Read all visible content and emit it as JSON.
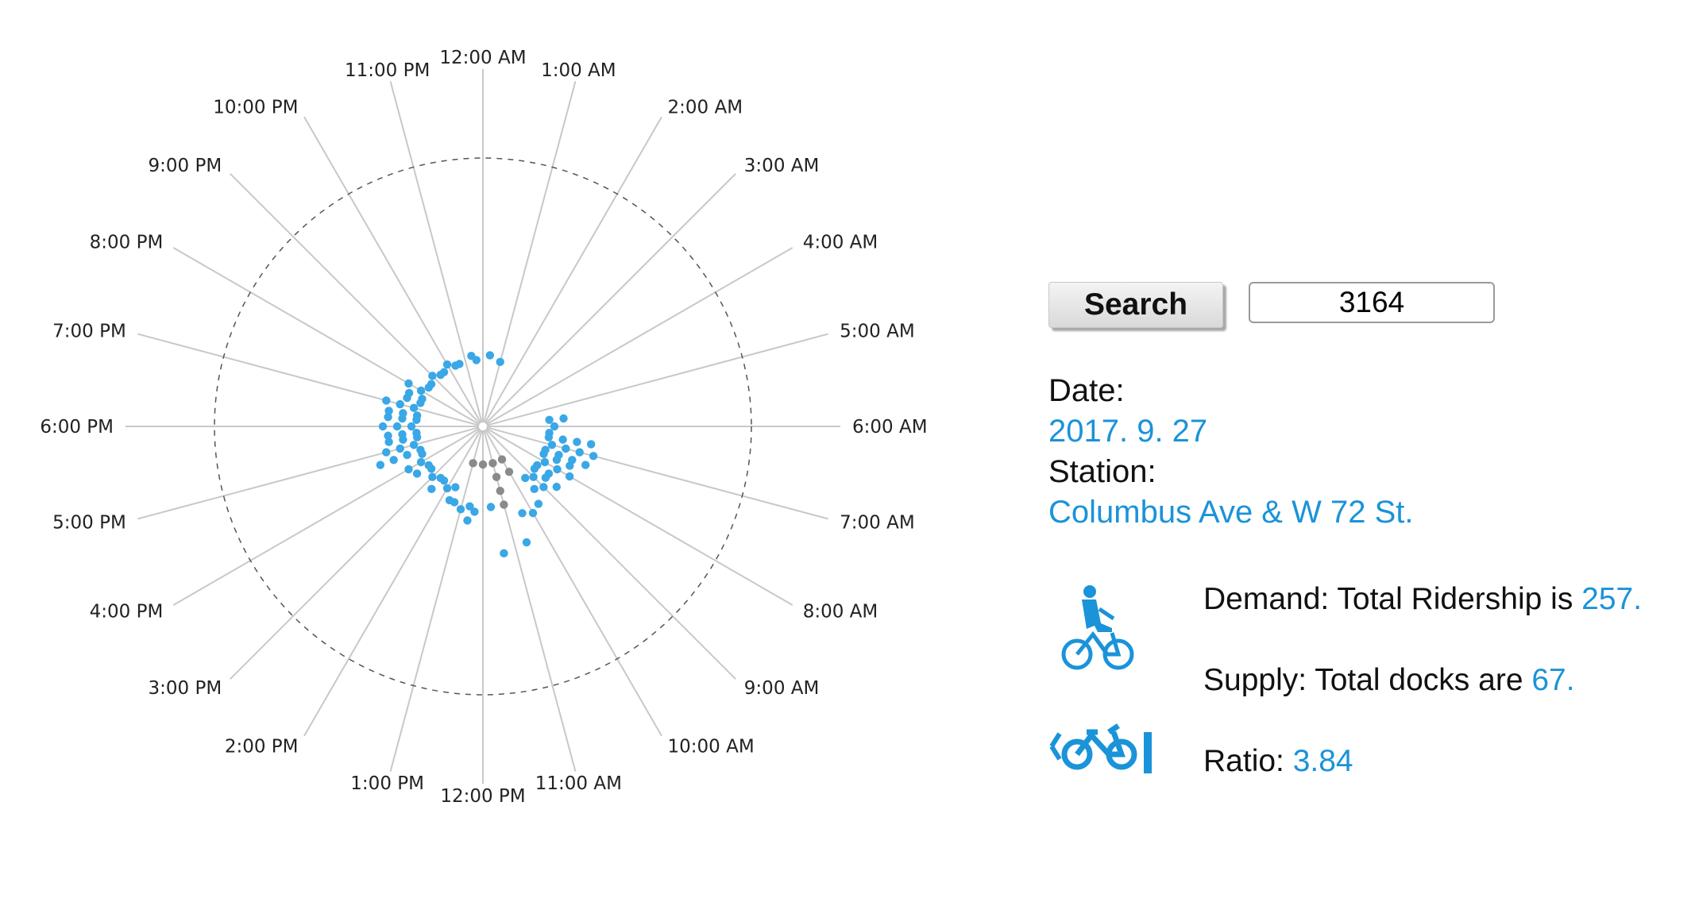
{
  "chart_data": {
    "type": "radial-dot",
    "hour_labels": [
      "12:00 AM",
      "1:00 AM",
      "2:00 AM",
      "3:00 AM",
      "4:00 AM",
      "5:00 AM",
      "6:00 AM",
      "7:00 AM",
      "8:00 AM",
      "9:00 AM",
      "10:00 AM",
      "11:00 AM",
      "12:00 PM",
      "1:00 PM",
      "2:00 PM",
      "3:00 PM",
      "4:00 PM",
      "5:00 PM",
      "6:00 PM",
      "7:00 PM",
      "8:00 PM",
      "9:00 PM",
      "10:00 PM",
      "11:00 PM"
    ],
    "series": [
      {
        "values": [
          2,
          1,
          0,
          0,
          0,
          0,
          4,
          12,
          8,
          7,
          3,
          2,
          2,
          4,
          4,
          4,
          5,
          10,
          9,
          8,
          5,
          3,
          3,
          2
        ]
      },
      {
        "values": [
          0,
          0,
          0,
          0,
          0,
          0,
          0,
          0,
          0,
          0,
          2,
          4,
          1,
          1,
          0,
          0,
          0,
          0,
          0,
          0,
          0,
          0,
          0,
          0
        ]
      }
    ],
    "colors": [
      "#3aa7e6",
      "#8a8a8a"
    ]
  },
  "search": {
    "button_label": "Search",
    "value": "3164"
  },
  "info": {
    "date_label": "Date:",
    "date_value": "2017. 9. 27",
    "station_label": "Station:",
    "station_value": "Columbus Ave & W 72 St."
  },
  "stats": {
    "demand_prefix": "Demand: Total Ridership is ",
    "demand_value": "257.",
    "supply_prefix": "Supply: Total docks are ",
    "supply_value": "67.",
    "ratio_prefix": "Ratio: ",
    "ratio_value": "3.84"
  },
  "icons": {
    "demand": "cyclist-icon",
    "ratio": "bike-dock-icon"
  },
  "accent_color": "#1a93d9"
}
